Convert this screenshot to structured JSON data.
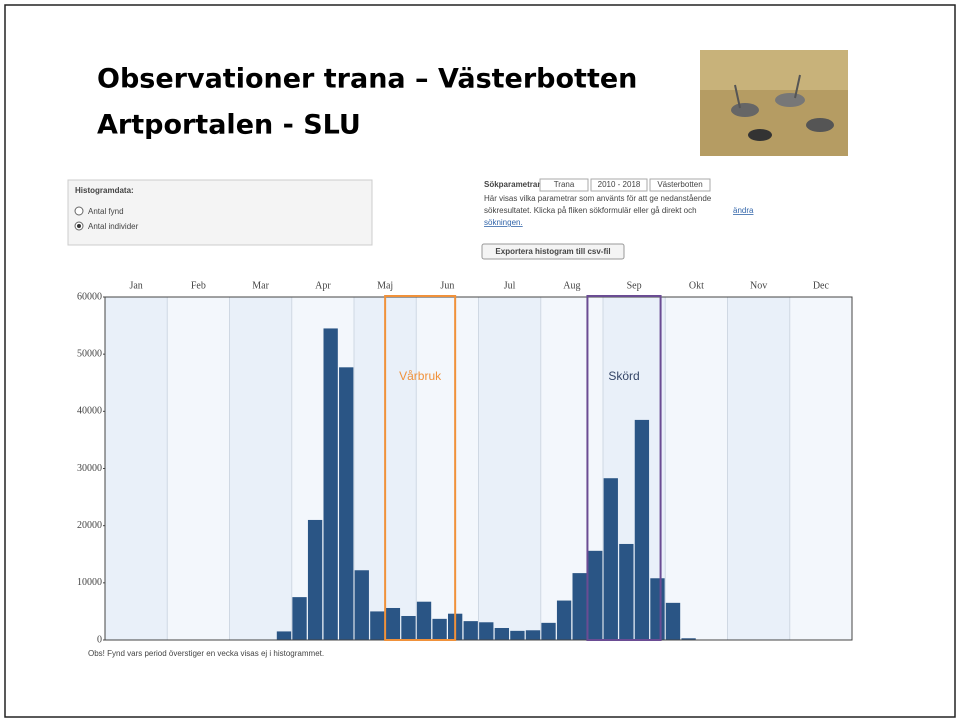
{
  "slide": {
    "title_lines": [
      "Observationer trana – Västerbotten",
      "Artportalen - SLU"
    ]
  },
  "panel": {
    "histogram_heading": "Histogramdata:",
    "options": [
      "Antal fynd",
      "Antal individer"
    ],
    "params_heading": "Sökparametrar:",
    "params": [
      "Trana",
      "2010 - 2018",
      "Västerbotten"
    ],
    "description_lines": [
      "Här visas vilka parametrar som använts för att ge nedanstående",
      "sökresultatet. Klicka på fliken sökformulär eller gå direkt och"
    ],
    "link_parts": [
      "ändra",
      "sökningen."
    ],
    "export_button": "Exportera histogram till csv-fil",
    "footnote": "Obs! Fynd vars period överstiger en vecka visas ej i histogrammet."
  },
  "chart_data": {
    "type": "bar",
    "color": "#2a5585",
    "categories": [
      "Jan",
      null,
      null,
      null,
      "Feb",
      null,
      null,
      null,
      "Mar",
      null,
      null,
      null,
      "Apr",
      null,
      null,
      null,
      "Maj",
      null,
      null,
      null,
      "Jun",
      null,
      null,
      null,
      "Jul",
      null,
      null,
      null,
      "Aug",
      null,
      null,
      null,
      "Sep",
      null,
      null,
      null,
      "Okt",
      null,
      null,
      null,
      "Nov",
      null,
      null,
      null,
      "Dec",
      null,
      null,
      null
    ],
    "values": [
      0,
      0,
      0,
      0,
      0,
      0,
      0,
      0,
      0,
      0,
      0,
      1500,
      7500,
      21000,
      54500,
      47700,
      12200,
      5000,
      5600,
      4200,
      6700,
      3700,
      4600,
      3300,
      3100,
      2100,
      1600,
      1700,
      3000,
      6900,
      11700,
      15600,
      28300,
      16800,
      38500,
      10800,
      6500,
      300,
      0,
      0,
      0,
      0,
      0,
      0,
      0,
      0,
      0,
      0
    ],
    "ylim": [
      0,
      60000
    ],
    "yticks": [
      0,
      10000,
      20000,
      30000,
      40000,
      50000,
      60000
    ],
    "annotations": [
      {
        "text": "Vårbruk",
        "color": "#f0913a"
      },
      {
        "text": "Skörd",
        "color": "#6a4c93"
      }
    ]
  }
}
